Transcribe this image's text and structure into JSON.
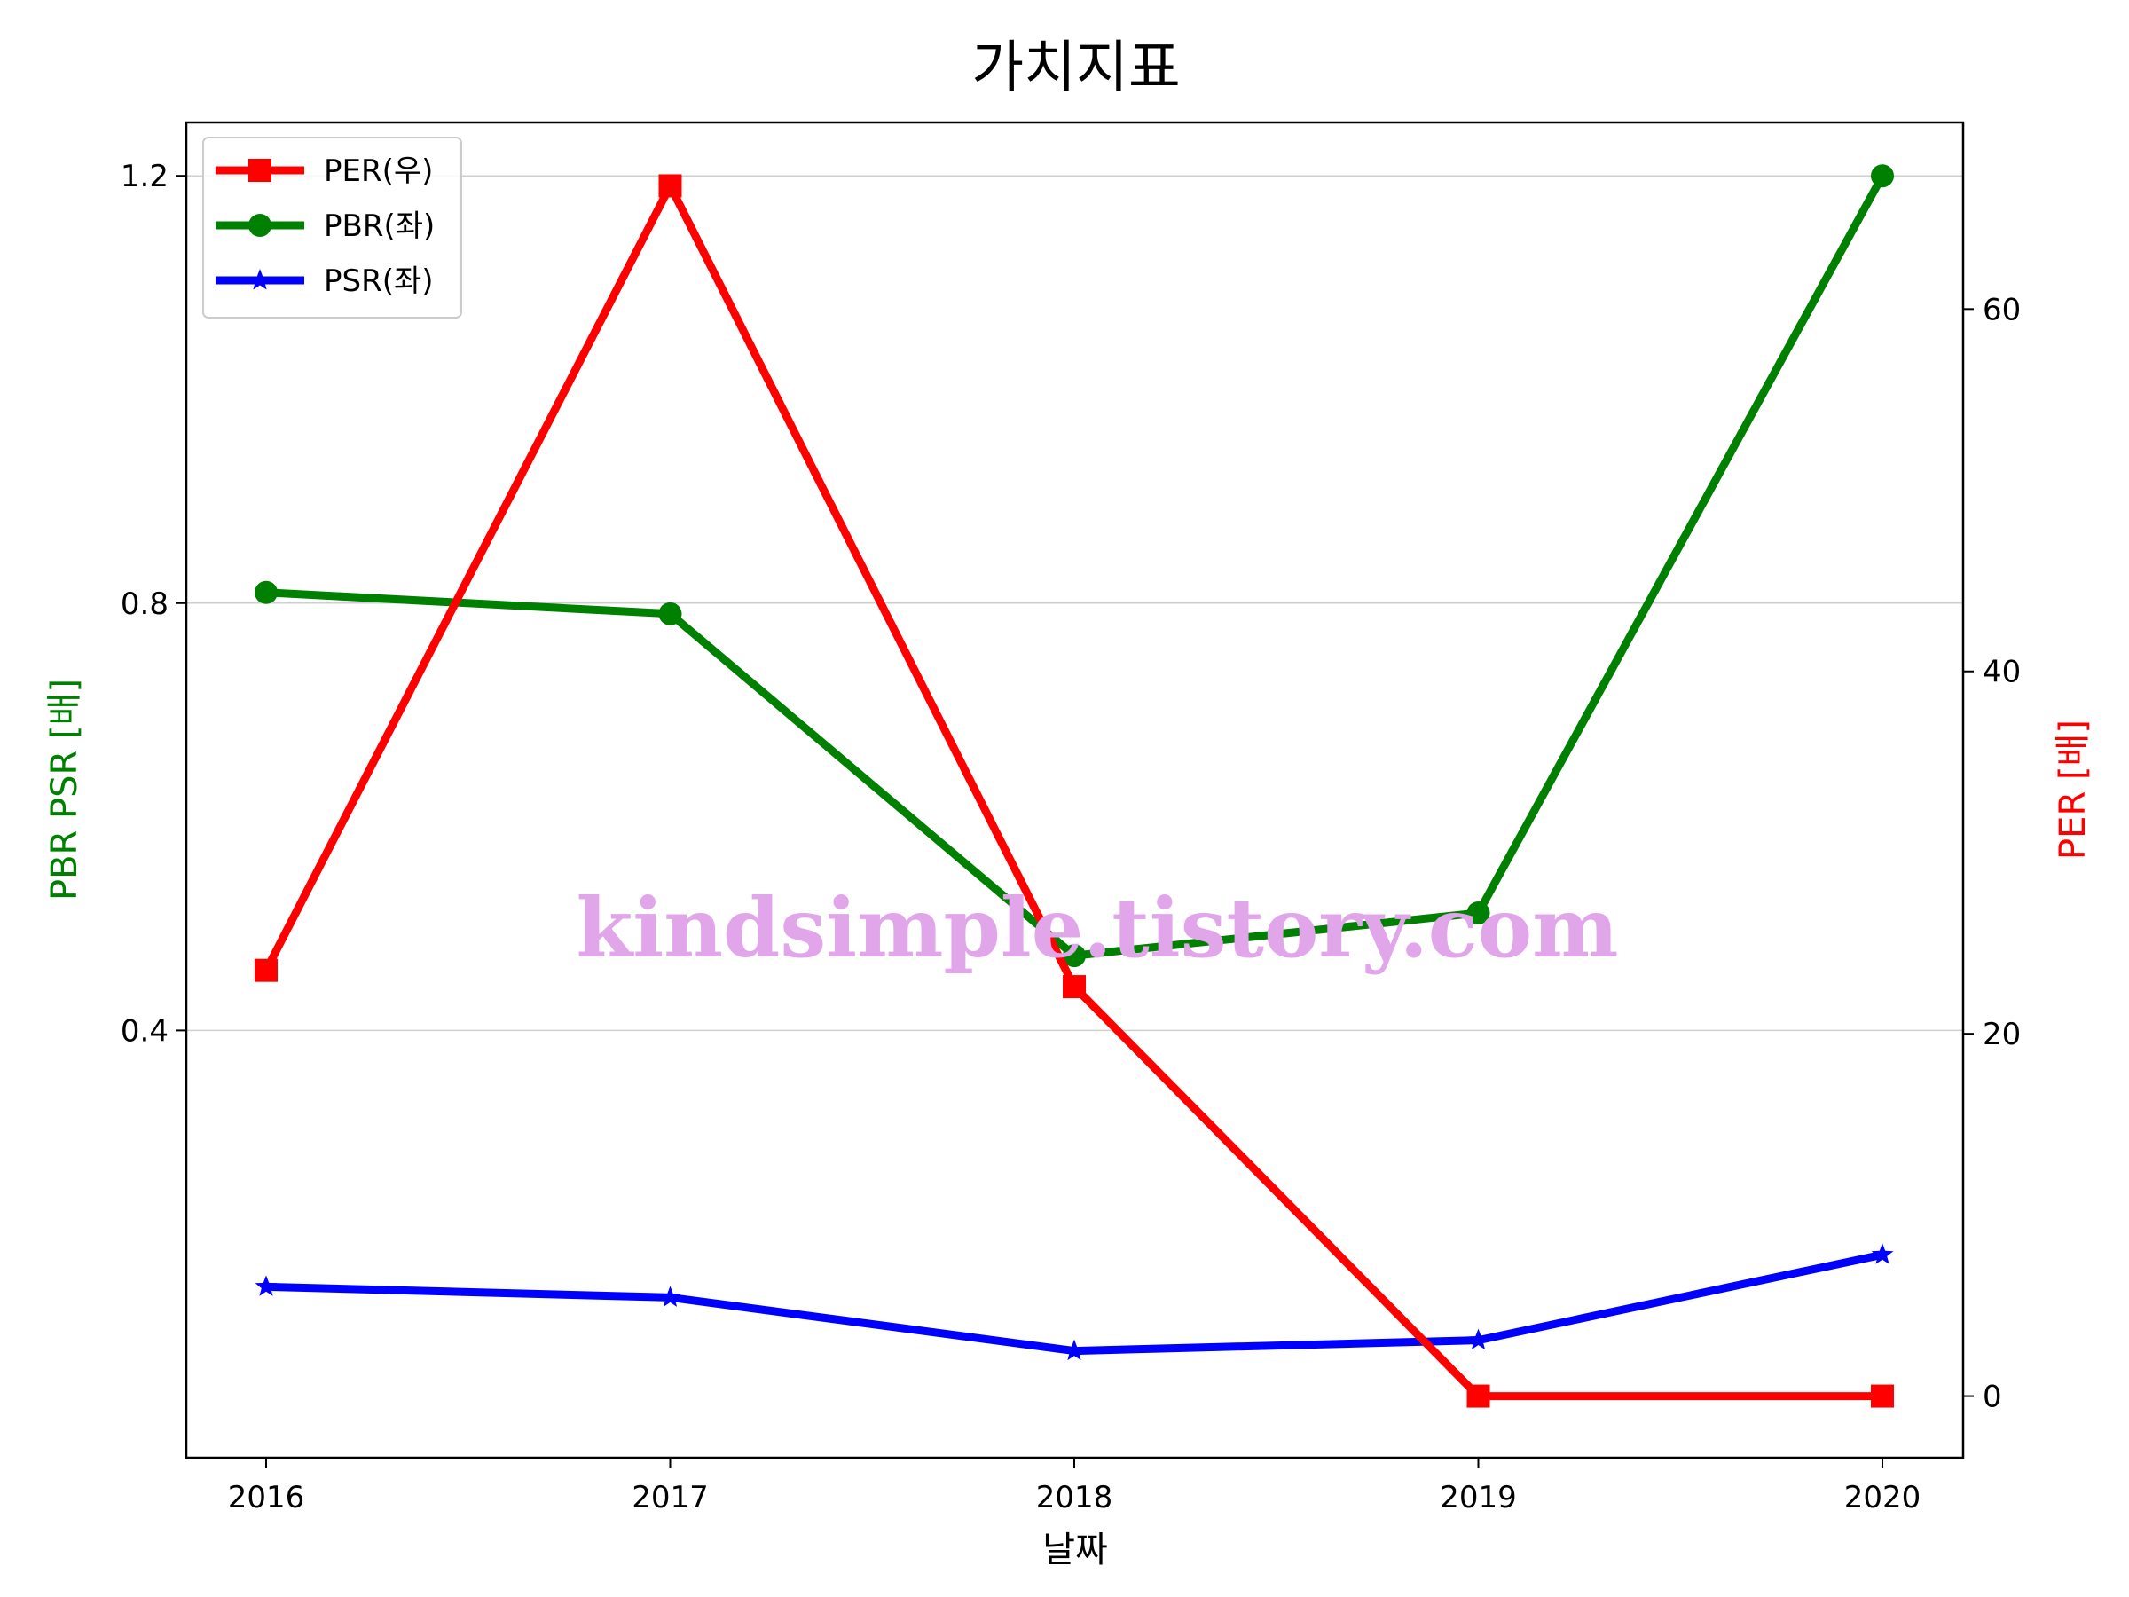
{
  "chart_data": {
    "type": "line",
    "title": "가치지표",
    "xlabel": "날짜",
    "ylabel_left": "PBR PSR [배]",
    "ylabel_right": "PER [배]",
    "ylabel_left_color": "#008000",
    "ylabel_right_color": "#ff0000",
    "x": [
      "2016",
      "2017",
      "2018",
      "2019",
      "2020"
    ],
    "y_left": {
      "ylim": [
        0.0,
        1.25
      ],
      "ticks": [
        0.4,
        0.8,
        1.2
      ],
      "tick_labels": [
        "0.4",
        "0.8",
        "1.2"
      ]
    },
    "y_right": {
      "ylim": [
        -3.4,
        70.3
      ],
      "ticks": [
        0,
        20,
        40,
        60
      ],
      "tick_labels": [
        "0",
        "20",
        "40",
        "60"
      ]
    },
    "grid": "horizontal-left",
    "legend_position": "top-left",
    "series": [
      {
        "name": "PER(우)",
        "axis": "right",
        "color": "#ff0000",
        "marker": "square",
        "values": [
          23.5,
          66.8,
          22.6,
          0.0,
          0.0
        ]
      },
      {
        "name": "PBR(좌)",
        "axis": "left",
        "color": "#008000",
        "marker": "circle",
        "values": [
          0.81,
          0.79,
          0.47,
          0.51,
          1.2
        ]
      },
      {
        "name": "PSR(좌)",
        "axis": "left",
        "color": "#0000ff",
        "marker": "star",
        "values": [
          0.16,
          0.15,
          0.1,
          0.11,
          0.19
        ]
      }
    ],
    "watermark": "kindsimple.tistory.com"
  }
}
